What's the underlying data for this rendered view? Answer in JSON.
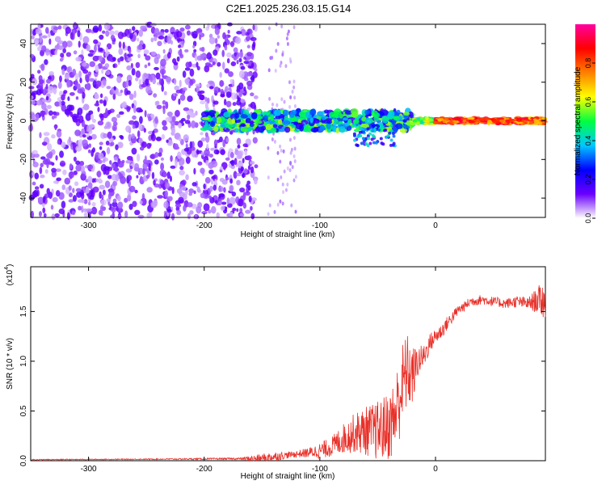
{
  "title": "C2E1.2025.236.03.15.G14",
  "chart_data": [
    {
      "type": "heatmap",
      "name": "spectrogram",
      "xlabel": "Height of straight line (km)",
      "ylabel": "Frequency (Hz)",
      "xlim": [
        -350,
        95
      ],
      "ylim": [
        -50,
        50
      ],
      "xticks": [
        -300,
        -200,
        -100,
        0
      ],
      "xtick_labels": [
        "-300",
        "-200",
        "-100",
        "0"
      ],
      "yticks": [
        -40,
        -20,
        0,
        20,
        40
      ],
      "ytick_labels": [
        "-40",
        "-20",
        "0",
        "20",
        "40"
      ],
      "colorbar": {
        "label": "Normalized spectral amplitude",
        "range": [
          0,
          1
        ],
        "ticks": [
          0.0,
          0.2,
          0.4,
          0.6,
          0.8
        ],
        "tick_labels": [
          "0.0",
          "0.2",
          "0.4",
          "0.6",
          "0.8"
        ],
        "colors": [
          "#ffffff",
          "#6a00ff",
          "#0000ff",
          "#00c8ff",
          "#00ff40",
          "#ffff00",
          "#ff8000",
          "#ff0000",
          "#ff00a0"
        ]
      },
      "description_regions": [
        {
          "x_range": [
            -350,
            -155
          ],
          "freq_range": [
            -50,
            50
          ],
          "amplitude": "low broadband noise"
        },
        {
          "x_range": [
            -145,
            -120
          ],
          "freq_range": [
            -50,
            50
          ],
          "amplitude": "very low sparse noise"
        },
        {
          "x_range": [
            -200,
            -20
          ],
          "freq_center": 0,
          "freq_width": 8,
          "amplitude": "0.2-0.6 emerging tone"
        },
        {
          "x_range": [
            -20,
            95
          ],
          "freq_center": 0,
          "freq_width": 3,
          "amplitude": "0.7-0.9 strong tone"
        }
      ]
    },
    {
      "type": "line",
      "name": "snr",
      "xlabel": "Height of straight line (km)",
      "ylabel": "SNR (10 * v/v)",
      "scale_label": "(x10",
      "scale_exponent": "4",
      "xlim": [
        -350,
        95
      ],
      "ylim": [
        0,
        1.95
      ],
      "xticks": [
        -300,
        -200,
        -100,
        0
      ],
      "xtick_labels": [
        "-300",
        "-200",
        "-100",
        "0"
      ],
      "yticks": [
        0.0,
        0.5,
        1.0,
        1.5
      ],
      "ytick_labels": [
        "0.0",
        "0.5",
        "1.0",
        "1.5"
      ],
      "color": "#e8312a",
      "series": [
        {
          "name": "SNR",
          "x": [
            -350,
            -250,
            -170,
            -150,
            -140,
            -125,
            -110,
            -100,
            -90,
            -80,
            -70,
            -60,
            -50,
            -40,
            -35,
            -30,
            -25,
            -20,
            -15,
            -10,
            -5,
            0,
            5,
            10,
            15,
            20,
            25,
            30,
            40,
            50,
            60,
            70,
            80,
            90,
            95
          ],
          "y": [
            0.01,
            0.015,
            0.02,
            0.02,
            0.04,
            0.06,
            0.08,
            0.1,
            0.14,
            0.22,
            0.28,
            0.3,
            0.3,
            0.35,
            0.45,
            0.7,
            0.9,
            0.85,
            1.0,
            1.05,
            1.18,
            1.25,
            1.3,
            1.38,
            1.45,
            1.52,
            1.55,
            1.6,
            1.62,
            1.6,
            1.58,
            1.6,
            1.58,
            1.62,
            1.6
          ],
          "noise": [
            0.005,
            0.005,
            0.01,
            0.05,
            0.05,
            0.03,
            0.05,
            0.08,
            0.1,
            0.15,
            0.2,
            0.25,
            0.3,
            0.35,
            0.4,
            0.45,
            0.4,
            0.3,
            0.15,
            0.12,
            0.1,
            0.08,
            0.08,
            0.07,
            0.06,
            0.05,
            0.05,
            0.05,
            0.05,
            0.05,
            0.05,
            0.06,
            0.06,
            0.15,
            0.2
          ]
        }
      ]
    }
  ]
}
